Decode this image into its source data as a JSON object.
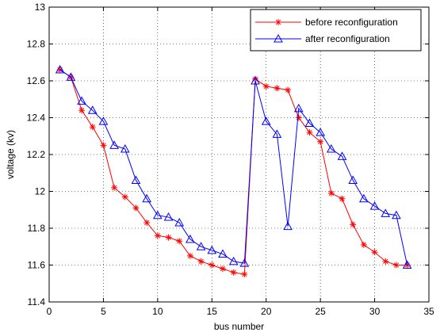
{
  "chart_data": {
    "type": "line",
    "xlabel": "bus number",
    "ylabel": "voltage (kv)",
    "xlim": [
      0,
      35
    ],
    "ylim": [
      11.4,
      13
    ],
    "xticks": [
      0,
      5,
      10,
      15,
      20,
      25,
      30,
      35
    ],
    "yticks": [
      11.4,
      11.6,
      11.8,
      12,
      12.2,
      12.4,
      12.6,
      12.8,
      13
    ],
    "ytick_labels": [
      "11.4",
      "11.6",
      "11.8",
      "12",
      "12.2",
      "12.4",
      "12.6",
      "12.8",
      "13"
    ],
    "xtick_labels": [
      "0",
      "5",
      "10",
      "15",
      "20",
      "25",
      "30",
      "35"
    ],
    "grid": "dotted",
    "legend_position": "top-right",
    "x": [
      1,
      2,
      3,
      4,
      5,
      6,
      7,
      8,
      9,
      10,
      11,
      12,
      13,
      14,
      15,
      16,
      17,
      18,
      19,
      20,
      21,
      22,
      23,
      24,
      25,
      26,
      27,
      28,
      29,
      30,
      31,
      32,
      33
    ],
    "series": [
      {
        "name": "before reconfiguration",
        "color": "#ff0000",
        "marker": "asterisk",
        "values": [
          12.66,
          12.62,
          12.44,
          12.35,
          12.25,
          12.02,
          11.97,
          11.91,
          11.83,
          11.76,
          11.75,
          11.73,
          11.65,
          11.62,
          11.6,
          11.58,
          11.56,
          11.55,
          12.61,
          12.57,
          12.56,
          12.55,
          12.4,
          12.32,
          12.27,
          11.99,
          11.96,
          11.82,
          11.71,
          11.67,
          11.62,
          11.6,
          11.6
        ]
      },
      {
        "name": "after reconfiguration",
        "color": "#0000ff",
        "marker": "triangle",
        "values": [
          12.66,
          12.62,
          12.49,
          12.44,
          12.38,
          12.25,
          12.23,
          12.06,
          11.96,
          11.87,
          11.86,
          11.83,
          11.74,
          11.7,
          11.68,
          11.66,
          11.62,
          11.61,
          12.6,
          12.38,
          12.31,
          11.81,
          12.45,
          12.37,
          12.32,
          12.23,
          12.19,
          12.06,
          11.96,
          11.92,
          11.88,
          11.87,
          11.6
        ]
      }
    ]
  }
}
